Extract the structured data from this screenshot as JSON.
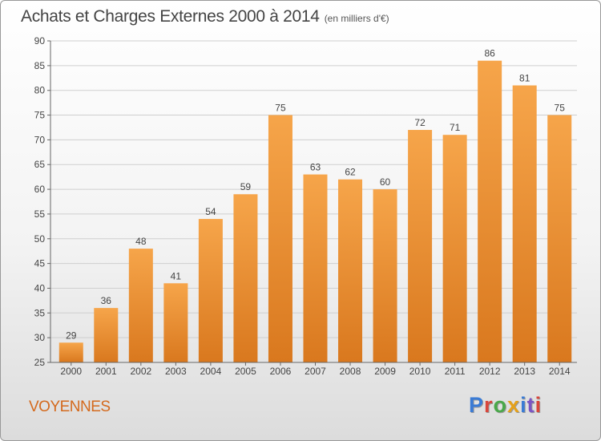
{
  "header": {
    "title": "Achats et Charges Externes 2000 à 2014",
    "subtitle": "(en milliers d'€)"
  },
  "footer": {
    "city": "VOYENNES",
    "brand": "Proxiti",
    "brand_colors": [
      "#3a7bd5",
      "#d9463b",
      "#4aa84a",
      "#e5a11a",
      "#3a7bd5",
      "#7b55c4",
      "#d9463b"
    ]
  },
  "chart_data": {
    "type": "bar",
    "title": "Achats et Charges Externes 2000 à 2014",
    "subtitle": "(en milliers d'€)",
    "categories": [
      "2000",
      "2001",
      "2002",
      "2003",
      "2004",
      "2005",
      "2006",
      "2007",
      "2008",
      "2009",
      "2010",
      "2011",
      "2012",
      "2013",
      "2014"
    ],
    "values": [
      29,
      36,
      48,
      41,
      54,
      59,
      75,
      63,
      62,
      60,
      72,
      71,
      86,
      81,
      75
    ],
    "ylim": [
      25,
      90
    ],
    "yticks": [
      25,
      30,
      35,
      40,
      45,
      50,
      55,
      60,
      65,
      70,
      75,
      80,
      85,
      90
    ],
    "grid": true,
    "bar_color": "#f29a3d",
    "bar_color_dark": "#d9781e"
  }
}
